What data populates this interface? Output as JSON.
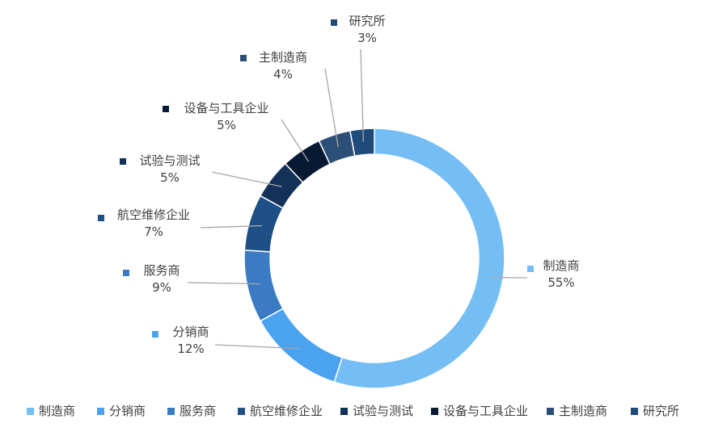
{
  "chart_data": {
    "type": "pie",
    "variant": "donut",
    "title": "",
    "legend_position": "bottom",
    "series": [
      {
        "name": "制造商",
        "value": 55,
        "label": "55%",
        "color": "#75BEF5"
      },
      {
        "name": "分销商",
        "value": 12,
        "label": "12%",
        "color": "#4BA3F0"
      },
      {
        "name": "服务商",
        "value": 9,
        "label": "9%",
        "color": "#3A7BC4"
      },
      {
        "name": "航空维修企业",
        "value": 7,
        "label": "7%",
        "color": "#1E4F86"
      },
      {
        "name": "试验与测试",
        "value": 5,
        "label": "5%",
        "color": "#14315A"
      },
      {
        "name": "设备与工具企业",
        "value": 5,
        "label": "5%",
        "color": "#081A33"
      },
      {
        "name": "主制造商",
        "value": 4,
        "label": "4%",
        "color": "#2C4F78"
      },
      {
        "name": "研究所",
        "value": 3,
        "label": "3%",
        "color": "#1F4B7A"
      }
    ]
  }
}
